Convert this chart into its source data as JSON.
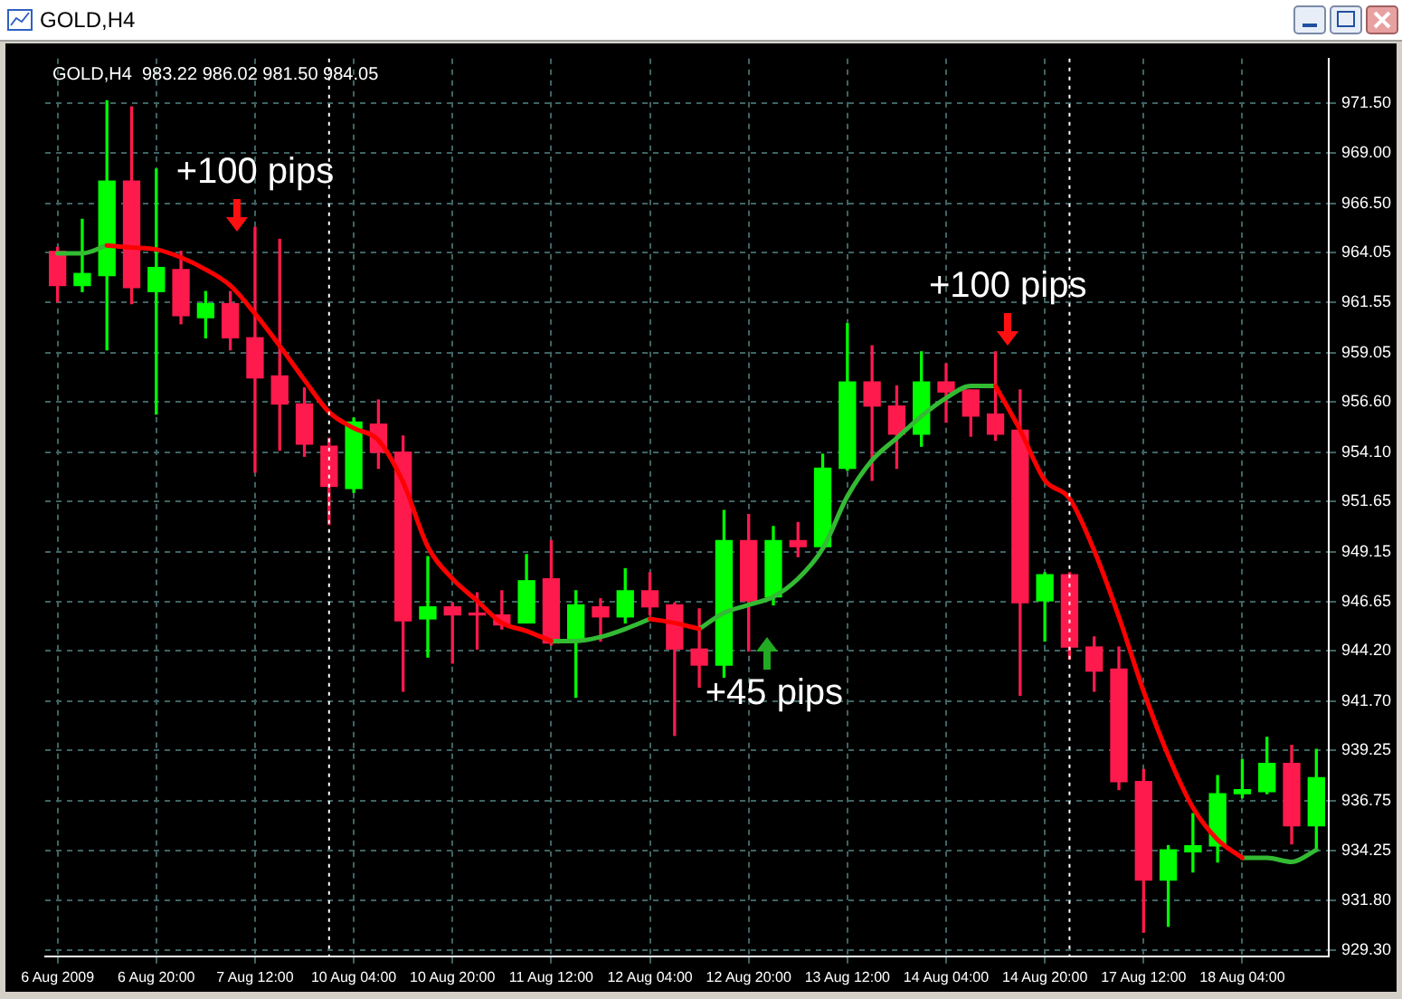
{
  "chart_data": {
    "type": "candlestick",
    "title": "GOLD,H4",
    "subtitle": "GOLD,H4  983.22 986.02 981.50 984.05",
    "categories": [
      "6 Aug 2009",
      null,
      null,
      null,
      "6 Aug 20:00",
      null,
      null,
      null,
      "7 Aug 12:00",
      null,
      null,
      null,
      "10 Aug 04:00",
      null,
      null,
      null,
      "10 Aug 20:00",
      null,
      null,
      null,
      "11 Aug 12:00",
      null,
      null,
      null,
      "12 Aug 04:00",
      null,
      null,
      null,
      "12 Aug 20:00",
      null,
      null,
      null,
      "13 Aug 12:00",
      null,
      null,
      null,
      "14 Aug 04:00",
      null,
      null,
      null,
      "14 Aug 20:00",
      null,
      null,
      null,
      "17 Aug 12:00",
      null,
      null,
      null,
      "18 Aug 04:00",
      null,
      null,
      null
    ],
    "ohlc": [
      [
        964.1,
        964.3,
        961.6,
        962.4
      ],
      [
        962.4,
        965.7,
        962.1,
        963.0
      ],
      [
        962.9,
        971.6,
        959.2,
        967.6
      ],
      [
        967.6,
        971.3,
        961.5,
        962.3
      ],
      [
        962.1,
        968.2,
        956.0,
        963.3
      ],
      [
        963.2,
        964.1,
        960.5,
        960.9
      ],
      [
        960.8,
        962.1,
        959.8,
        961.5
      ],
      [
        961.5,
        962.1,
        959.2,
        959.8
      ],
      [
        959.8,
        965.3,
        953.1,
        957.8
      ],
      [
        957.9,
        964.7,
        954.2,
        956.5
      ],
      [
        956.5,
        957.3,
        953.9,
        954.5
      ],
      [
        954.4,
        954.8,
        950.5,
        952.4
      ],
      [
        952.3,
        955.8,
        952.1,
        955.6
      ],
      [
        955.5,
        956.7,
        953.3,
        954.1
      ],
      [
        954.1,
        954.9,
        942.2,
        945.7
      ],
      [
        945.8,
        948.9,
        943.9,
        946.4
      ],
      [
        946.4,
        946.6,
        943.6,
        946.0
      ],
      [
        946.0,
        947.1,
        944.3,
        946.0
      ],
      [
        946.0,
        947.2,
        945.3,
        945.5
      ],
      [
        945.6,
        949.0,
        945.6,
        947.7
      ],
      [
        947.8,
        949.7,
        944.5,
        944.6
      ],
      [
        944.7,
        947.2,
        941.9,
        946.5
      ],
      [
        946.4,
        946.8,
        944.7,
        945.9
      ],
      [
        945.9,
        948.3,
        945.6,
        947.2
      ],
      [
        947.2,
        948.1,
        946.0,
        946.4
      ],
      [
        946.5,
        946.6,
        940.0,
        944.3
      ],
      [
        944.3,
        946.3,
        942.4,
        943.5
      ],
      [
        943.5,
        951.2,
        942.9,
        949.7
      ],
      [
        949.7,
        951.0,
        944.2,
        946.7
      ],
      [
        946.9,
        950.4,
        946.5,
        949.7
      ],
      [
        949.7,
        950.6,
        948.9,
        949.4
      ],
      [
        949.4,
        954.0,
        949.3,
        953.3
      ],
      [
        953.3,
        960.5,
        953.2,
        957.6
      ],
      [
        957.6,
        959.4,
        952.7,
        956.4
      ],
      [
        956.4,
        957.4,
        953.3,
        955.0
      ],
      [
        955.0,
        959.1,
        954.4,
        957.6
      ],
      [
        957.6,
        958.5,
        955.6,
        957.1
      ],
      [
        957.2,
        957.2,
        954.9,
        955.9
      ],
      [
        956.0,
        959.1,
        954.7,
        955.0
      ],
      [
        955.2,
        957.2,
        942.0,
        946.6
      ],
      [
        946.7,
        948.1,
        944.7,
        948.0
      ],
      [
        948.0,
        948.1,
        943.8,
        944.4
      ],
      [
        944.4,
        944.9,
        942.2,
        943.2
      ],
      [
        943.3,
        944.4,
        937.3,
        937.7
      ],
      [
        937.7,
        938.3,
        930.2,
        932.8
      ],
      [
        932.8,
        934.5,
        930.5,
        934.3
      ],
      [
        934.2,
        936.1,
        933.2,
        934.5
      ],
      [
        934.5,
        938.0,
        933.7,
        937.1
      ],
      [
        937.1,
        938.8,
        936.9,
        937.3
      ],
      [
        937.2,
        939.9,
        937.1,
        938.6
      ],
      [
        938.6,
        939.5,
        934.6,
        935.5
      ],
      [
        935.5,
        939.3,
        934.3,
        937.9
      ]
    ],
    "colors": [
      "#ff1a4d",
      "#00ff00",
      "#00ff00",
      "#ff1a4d",
      "#00ff00",
      "#ff1a4d",
      "#00ff00",
      "#ff1a4d",
      "#ff1a4d",
      "#ff1a4d",
      "#ff1a4d",
      "#ff1a4d",
      "#00ff00",
      "#ff1a4d",
      "#ff1a4d",
      "#00ff00",
      "#ff1a4d",
      "#ff1a4d",
      "#ff1a4d",
      "#00ff00",
      "#ff1a4d",
      "#00ff00",
      "#ff1a4d",
      "#00ff00",
      "#ff1a4d",
      "#ff1a4d",
      "#ff1a4d",
      "#00ff00",
      "#ff1a4d",
      "#00ff00",
      "#ff1a4d",
      "#00ff00",
      "#00ff00",
      "#ff1a4d",
      "#ff1a4d",
      "#00ff00",
      "#ff1a4d",
      "#ff1a4d",
      "#ff1a4d",
      "#ff1a4d",
      "#00ff00",
      "#ff1a4d",
      "#ff1a4d",
      "#ff1a4d",
      "#ff1a4d",
      "#00ff00",
      "#00ff00",
      "#00ff00",
      "#00ff00",
      "#00ff00",
      "#ff1a4d",
      "#00ff00"
    ],
    "series": [
      {
        "type": "line",
        "color": "#ff0000",
        "values": [
          null,
          null,
          964.4,
          964.3,
          964.2,
          963.8,
          963.2,
          962.4,
          961.0,
          959.4,
          957.7,
          956.1,
          955.3,
          954.7,
          952.6,
          949.4,
          947.8,
          946.7,
          945.6,
          945.2,
          944.7,
          null,
          null,
          null,
          945.8,
          945.6,
          945.3,
          null,
          null,
          null,
          null,
          null,
          null,
          null,
          null,
          null,
          null,
          null,
          957.4,
          955.2,
          952.7,
          951.8,
          949.2,
          945.9,
          942.2,
          939.0,
          936.4,
          934.8,
          933.9,
          null,
          null,
          null
        ]
      },
      {
        "type": "line",
        "color": "#33bb33",
        "values": [
          964.0,
          964.0,
          964.4,
          null,
          null,
          null,
          null,
          null,
          null,
          null,
          null,
          null,
          null,
          null,
          null,
          null,
          null,
          null,
          null,
          null,
          944.7,
          944.7,
          944.9,
          945.3,
          945.8,
          null,
          945.3,
          946.1,
          946.5,
          946.9,
          947.8,
          949.3,
          951.9,
          953.7,
          954.8,
          955.9,
          956.8,
          957.4,
          957.4,
          null,
          null,
          null,
          null,
          null,
          null,
          null,
          null,
          null,
          933.9,
          933.9,
          933.7,
          934.3
        ]
      }
    ],
    "ylim": [
      929.0,
      973.7
    ],
    "yticks": [
      {
        "value": 971.5,
        "label": "971.50"
      },
      {
        "value": 969.0,
        "label": "969.00"
      },
      {
        "value": 966.5,
        "label": "966.50"
      },
      {
        "value": 964.05,
        "label": "964.05"
      },
      {
        "value": 961.55,
        "label": "961.55"
      },
      {
        "value": 959.05,
        "label": "959.05"
      },
      {
        "value": 956.6,
        "label": "956.60"
      },
      {
        "value": 954.1,
        "label": "954.10"
      },
      {
        "value": 951.65,
        "label": "951.65"
      },
      {
        "value": 949.15,
        "label": "949.15"
      },
      {
        "value": 946.65,
        "label": "946.65"
      },
      {
        "value": 944.2,
        "label": "944.20"
      },
      {
        "value": 941.7,
        "label": "941.70"
      },
      {
        "value": 939.25,
        "label": "939.25"
      },
      {
        "value": 936.75,
        "label": "936.75"
      },
      {
        "value": 934.25,
        "label": "934.25"
      },
      {
        "value": 931.8,
        "label": "931.80"
      },
      {
        "value": 929.3,
        "label": "929.30"
      }
    ],
    "annotations": [
      {
        "text": "+100 pips",
        "x": "7 Aug 12:00",
        "y": 965.1
      },
      {
        "text": "+45 pips",
        "x": "12 Aug 20:00",
        "y": 944.9
      },
      "+100 pips"
    ],
    "grid": true
  }
}
